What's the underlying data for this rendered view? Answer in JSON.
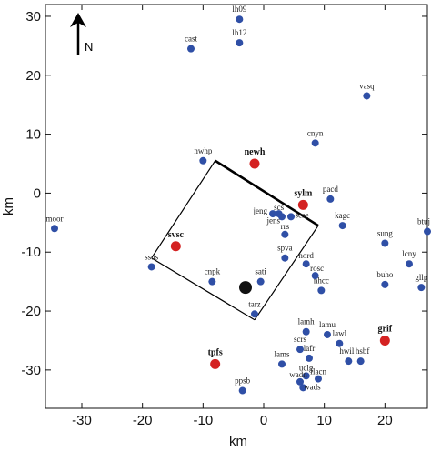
{
  "chart_data": {
    "type": "scatter",
    "xlabel": "km",
    "ylabel": "km",
    "xlim": [
      -36,
      27
    ],
    "ylim": [
      -36.5,
      32
    ],
    "xticks": [
      -30,
      -20,
      -10,
      0,
      10,
      20
    ],
    "yticks": [
      30,
      20,
      10,
      0,
      -10,
      -20,
      -30
    ],
    "north_label": "N",
    "colors": {
      "station": "#2f4fa6",
      "highlight": "#d42222",
      "epicenter": "#111111"
    },
    "stations": [
      {
        "name": "lh09",
        "x": -4,
        "y": 29.5
      },
      {
        "name": "cast",
        "x": -12,
        "y": 24.5
      },
      {
        "name": "lh12",
        "x": -4,
        "y": 25.5
      },
      {
        "name": "vasq",
        "x": 17,
        "y": 16.5
      },
      {
        "name": "cnyn",
        "x": 8.5,
        "y": 8.5
      },
      {
        "name": "nwhp",
        "x": -10,
        "y": 5.5
      },
      {
        "name": "newh",
        "x": -1.5,
        "y": 5,
        "highlight": true
      },
      {
        "name": "pacd",
        "x": 11,
        "y": -1
      },
      {
        "name": "sylm",
        "x": 6.5,
        "y": -2,
        "highlight": true
      },
      {
        "name": "jeng",
        "x": 1.5,
        "y": -3.5
      },
      {
        "name": "scs",
        "x": 2.5,
        "y": -3.5
      },
      {
        "name": "jens",
        "x": 3,
        "y": -4
      },
      {
        "name": "scse",
        "x": 4.5,
        "y": -4
      },
      {
        "name": "kagc",
        "x": 13,
        "y": -5.5
      },
      {
        "name": "moor",
        "x": -34.5,
        "y": -6
      },
      {
        "name": "rrs",
        "x": 3.5,
        "y": -7
      },
      {
        "name": "sung",
        "x": 20,
        "y": -8.5
      },
      {
        "name": "btuj",
        "x": 27,
        "y": -6.5
      },
      {
        "name": "svsc",
        "x": -14.5,
        "y": -9,
        "highlight": true
      },
      {
        "name": "spva",
        "x": 3.5,
        "y": -11
      },
      {
        "name": "ssus",
        "x": -18.5,
        "y": -12.5
      },
      {
        "name": "nord",
        "x": 7,
        "y": -12
      },
      {
        "name": "lcny",
        "x": 24,
        "y": -12
      },
      {
        "name": "rosc",
        "x": 8.5,
        "y": -14
      },
      {
        "name": "cnpk",
        "x": -8.5,
        "y": -15
      },
      {
        "name": "sati",
        "x": -0.5,
        "y": -15
      },
      {
        "name": "buho",
        "x": 20,
        "y": -15.5
      },
      {
        "name": "gllp",
        "x": 26,
        "y": -16
      },
      {
        "name": "nhcc",
        "x": 9.5,
        "y": -16.5
      },
      {
        "name": "tarz",
        "x": -1.5,
        "y": -20.5
      },
      {
        "name": "lamh",
        "x": 7,
        "y": -23.5
      },
      {
        "name": "lamu",
        "x": 10.5,
        "y": -24
      },
      {
        "name": "lawl",
        "x": 12.5,
        "y": -25.5
      },
      {
        "name": "grif",
        "x": 20,
        "y": -25,
        "highlight": true
      },
      {
        "name": "scrs",
        "x": 6,
        "y": -26.5
      },
      {
        "name": "lafr",
        "x": 7.5,
        "y": -28
      },
      {
        "name": "hwil",
        "x": 14,
        "y": -28.5
      },
      {
        "name": "hsbf",
        "x": 16,
        "y": -28.5
      },
      {
        "name": "lams",
        "x": 3,
        "y": -29
      },
      {
        "name": "tpfs",
        "x": -8,
        "y": -29,
        "highlight": true
      },
      {
        "name": "uclg",
        "x": 7,
        "y": -31
      },
      {
        "name": "flacn",
        "x": 9,
        "y": -31.5
      },
      {
        "name": "wadn",
        "x": 6,
        "y": -32
      },
      {
        "name": "wads",
        "x": 6.5,
        "y": -33
      },
      {
        "name": "ppsb",
        "x": -3.5,
        "y": -33.5
      }
    ],
    "epicenter": {
      "x": -3,
      "y": -16
    },
    "fault_outline": [
      {
        "x": -8,
        "y": 5.5
      },
      {
        "x": 9,
        "y": -5.5
      },
      {
        "x": -1.5,
        "y": -21.5
      },
      {
        "x": -18.5,
        "y": -11
      }
    ]
  }
}
